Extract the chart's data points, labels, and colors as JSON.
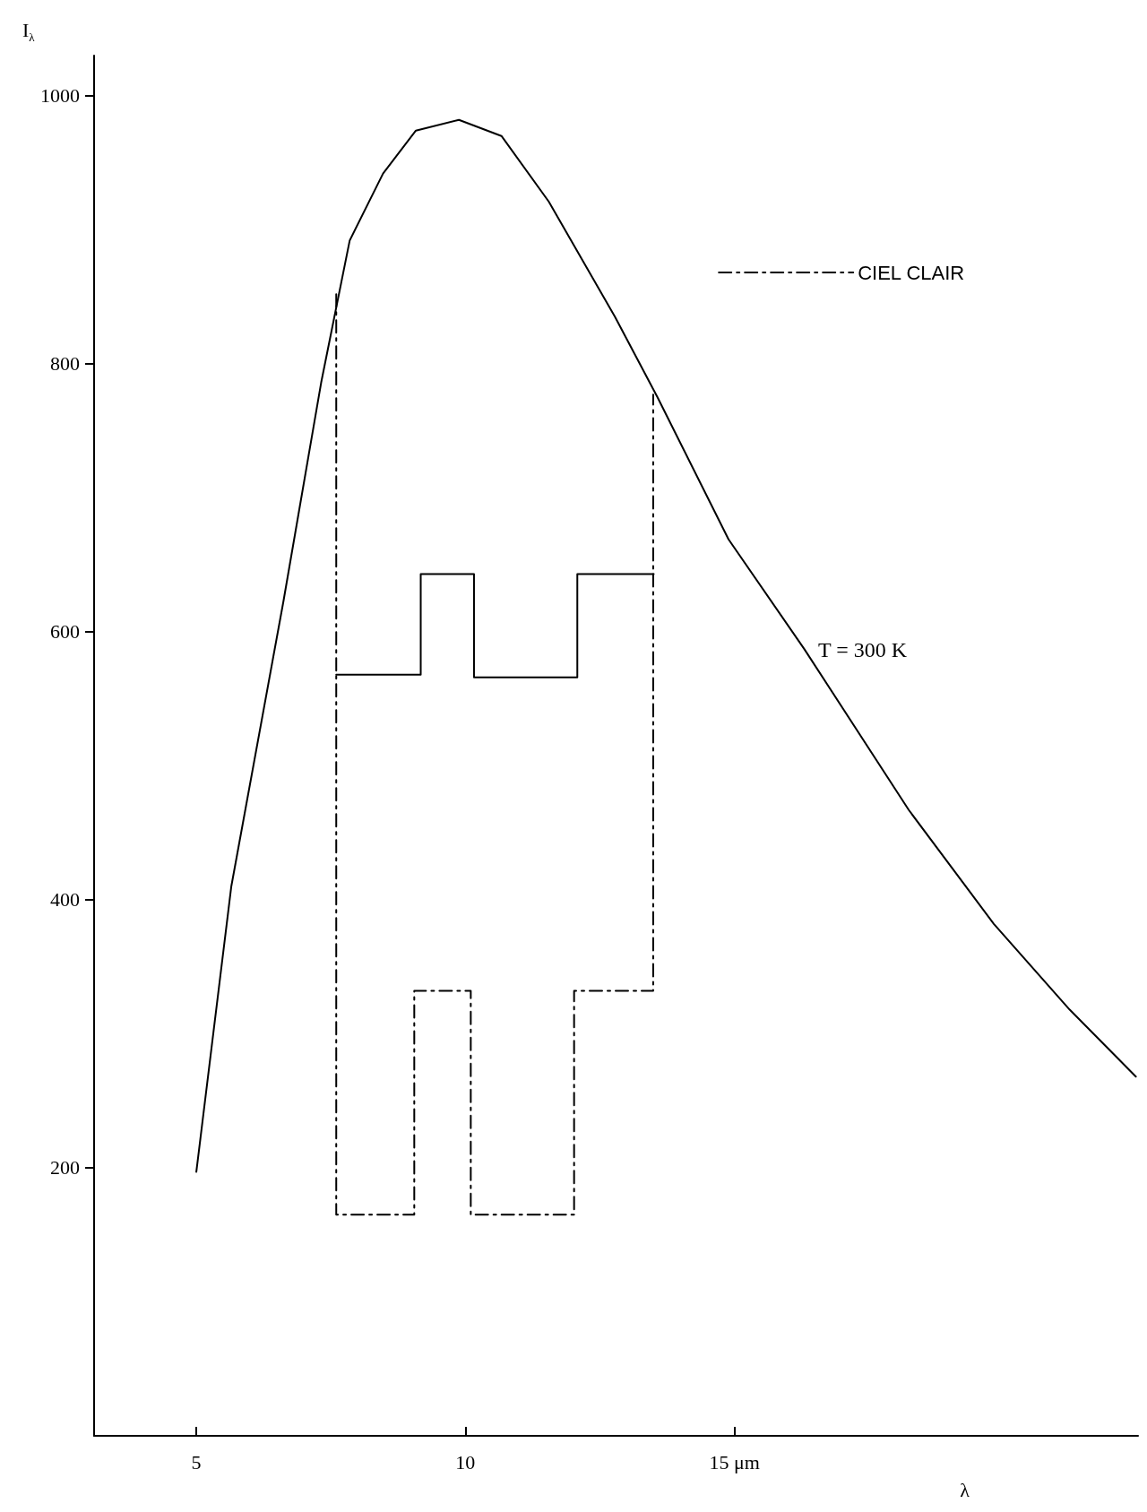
{
  "chart_data": {
    "type": "line",
    "ylabel": "I$_{λ}$",
    "xlabel": "λ",
    "xlim": [
      3.1,
      22.5
    ],
    "xticks": [
      5,
      10,
      {
        "value": 15,
        "label": "15 μm"
      }
    ],
    "ylim": [
      0,
      1030
    ],
    "yticks": [
      200,
      400,
      600,
      800,
      1000
    ],
    "grid": false,
    "legend": "top right",
    "marker": "none",
    "series": [
      {
        "color": "#000000",
        "x": [
          5.0,
          5.65,
          6.62,
          7.32,
          7.85,
          8.47,
          9.08,
          9.88,
          10.67,
          11.55,
          12.78,
          13.57,
          14.89,
          16.3,
          18.24,
          19.82,
          21.23,
          22.46
        ],
        "values": [
          197,
          410,
          623,
          786,
          892,
          942,
          974,
          982,
          970,
          921,
          835,
          775,
          669,
          587,
          467,
          382,
          318,
          268
        ]
      },
      {
        "color": "#000000",
        "x": [
          7.6,
          9.17,
          9.17,
          10.16,
          10.16,
          12.08,
          12.08,
          13.5
        ],
        "values": [
          568,
          568,
          643,
          643,
          566,
          566,
          643,
          643
        ]
      },
      {
        "name": "CIEL CLAIR",
        "color": "#000000",
        "line_style": "dashed",
        "x": [
          7.6,
          7.6,
          9.05,
          9.05,
          10.1,
          10.1,
          12.02,
          12.02,
          13.49,
          13.49
        ],
        "values": [
          852,
          165,
          165,
          332,
          332,
          165,
          165,
          332,
          332,
          777
        ]
      }
    ],
    "annotations": [
      "T = 300 K"
    ]
  }
}
